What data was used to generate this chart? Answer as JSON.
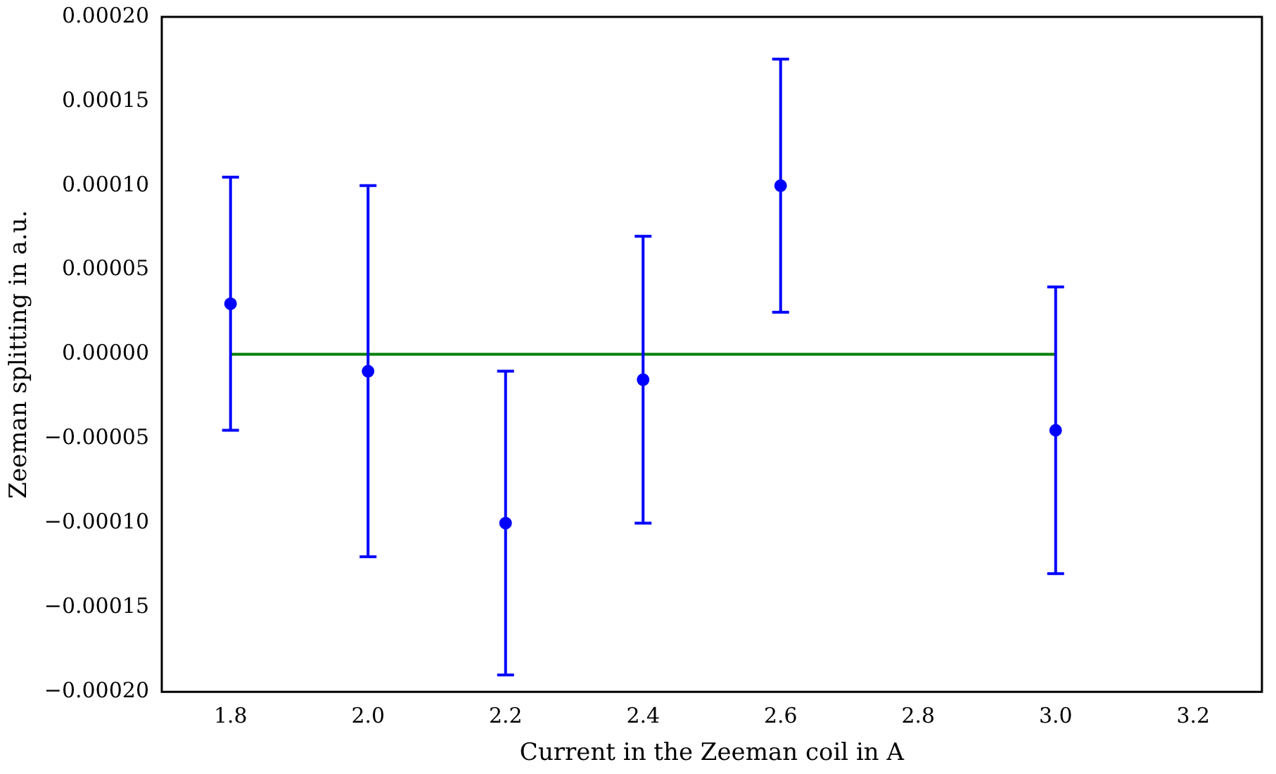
{
  "chart_data": {
    "type": "scatter",
    "xlabel": "Current in the Zeeman coil in A",
    "ylabel": "Zeeman splitting in a.u.",
    "xlim": [
      1.7,
      3.3
    ],
    "xticks": [
      {
        "value": 1.8,
        "label": "1.8"
      },
      {
        "value": 2.0,
        "label": "2.0"
      },
      {
        "value": 2.2,
        "label": "2.2"
      },
      {
        "value": 2.4,
        "label": "2.4"
      },
      {
        "value": 2.6,
        "label": "2.6"
      },
      {
        "value": 2.8,
        "label": "2.8"
      },
      {
        "value": 3.0,
        "label": "3.0"
      },
      {
        "value": 3.2,
        "label": "3.2"
      }
    ],
    "ylim": [
      -0.0002,
      0.0002
    ],
    "yticks": [
      {
        "value": -0.0002,
        "label": "−0.00020"
      },
      {
        "value": -0.00015,
        "label": "−0.00015"
      },
      {
        "value": -0.0001,
        "label": "−0.00010"
      },
      {
        "value": -5e-05,
        "label": "−0.00005"
      },
      {
        "value": 0,
        "label": "0.00000"
      },
      {
        "value": 5e-05,
        "label": "0.00005"
      },
      {
        "value": 0.0001,
        "label": "0.00010"
      },
      {
        "value": 0.00015,
        "label": "0.00015"
      },
      {
        "value": 0.0002,
        "label": "0.00020"
      }
    ],
    "grid": false,
    "legend": false,
    "marker": "circle",
    "series": [
      {
        "type": "scatter",
        "color": "#0000ff",
        "x": [
          1.8,
          2.0,
          2.2,
          2.4,
          2.6,
          3.0
        ],
        "values": [
          3e-05,
          -1e-05,
          -0.0001,
          -1.5e-05,
          0.0001,
          -4.5e-05
        ],
        "errors": [
          7.5e-05,
          0.00011,
          9e-05,
          8.5e-05,
          7.5e-05,
          8.5e-05
        ]
      },
      {
        "type": "line",
        "color": "#007f00",
        "x": [
          1.8,
          3.0
        ],
        "values": [
          0,
          0
        ],
        "marker": "none"
      }
    ]
  }
}
